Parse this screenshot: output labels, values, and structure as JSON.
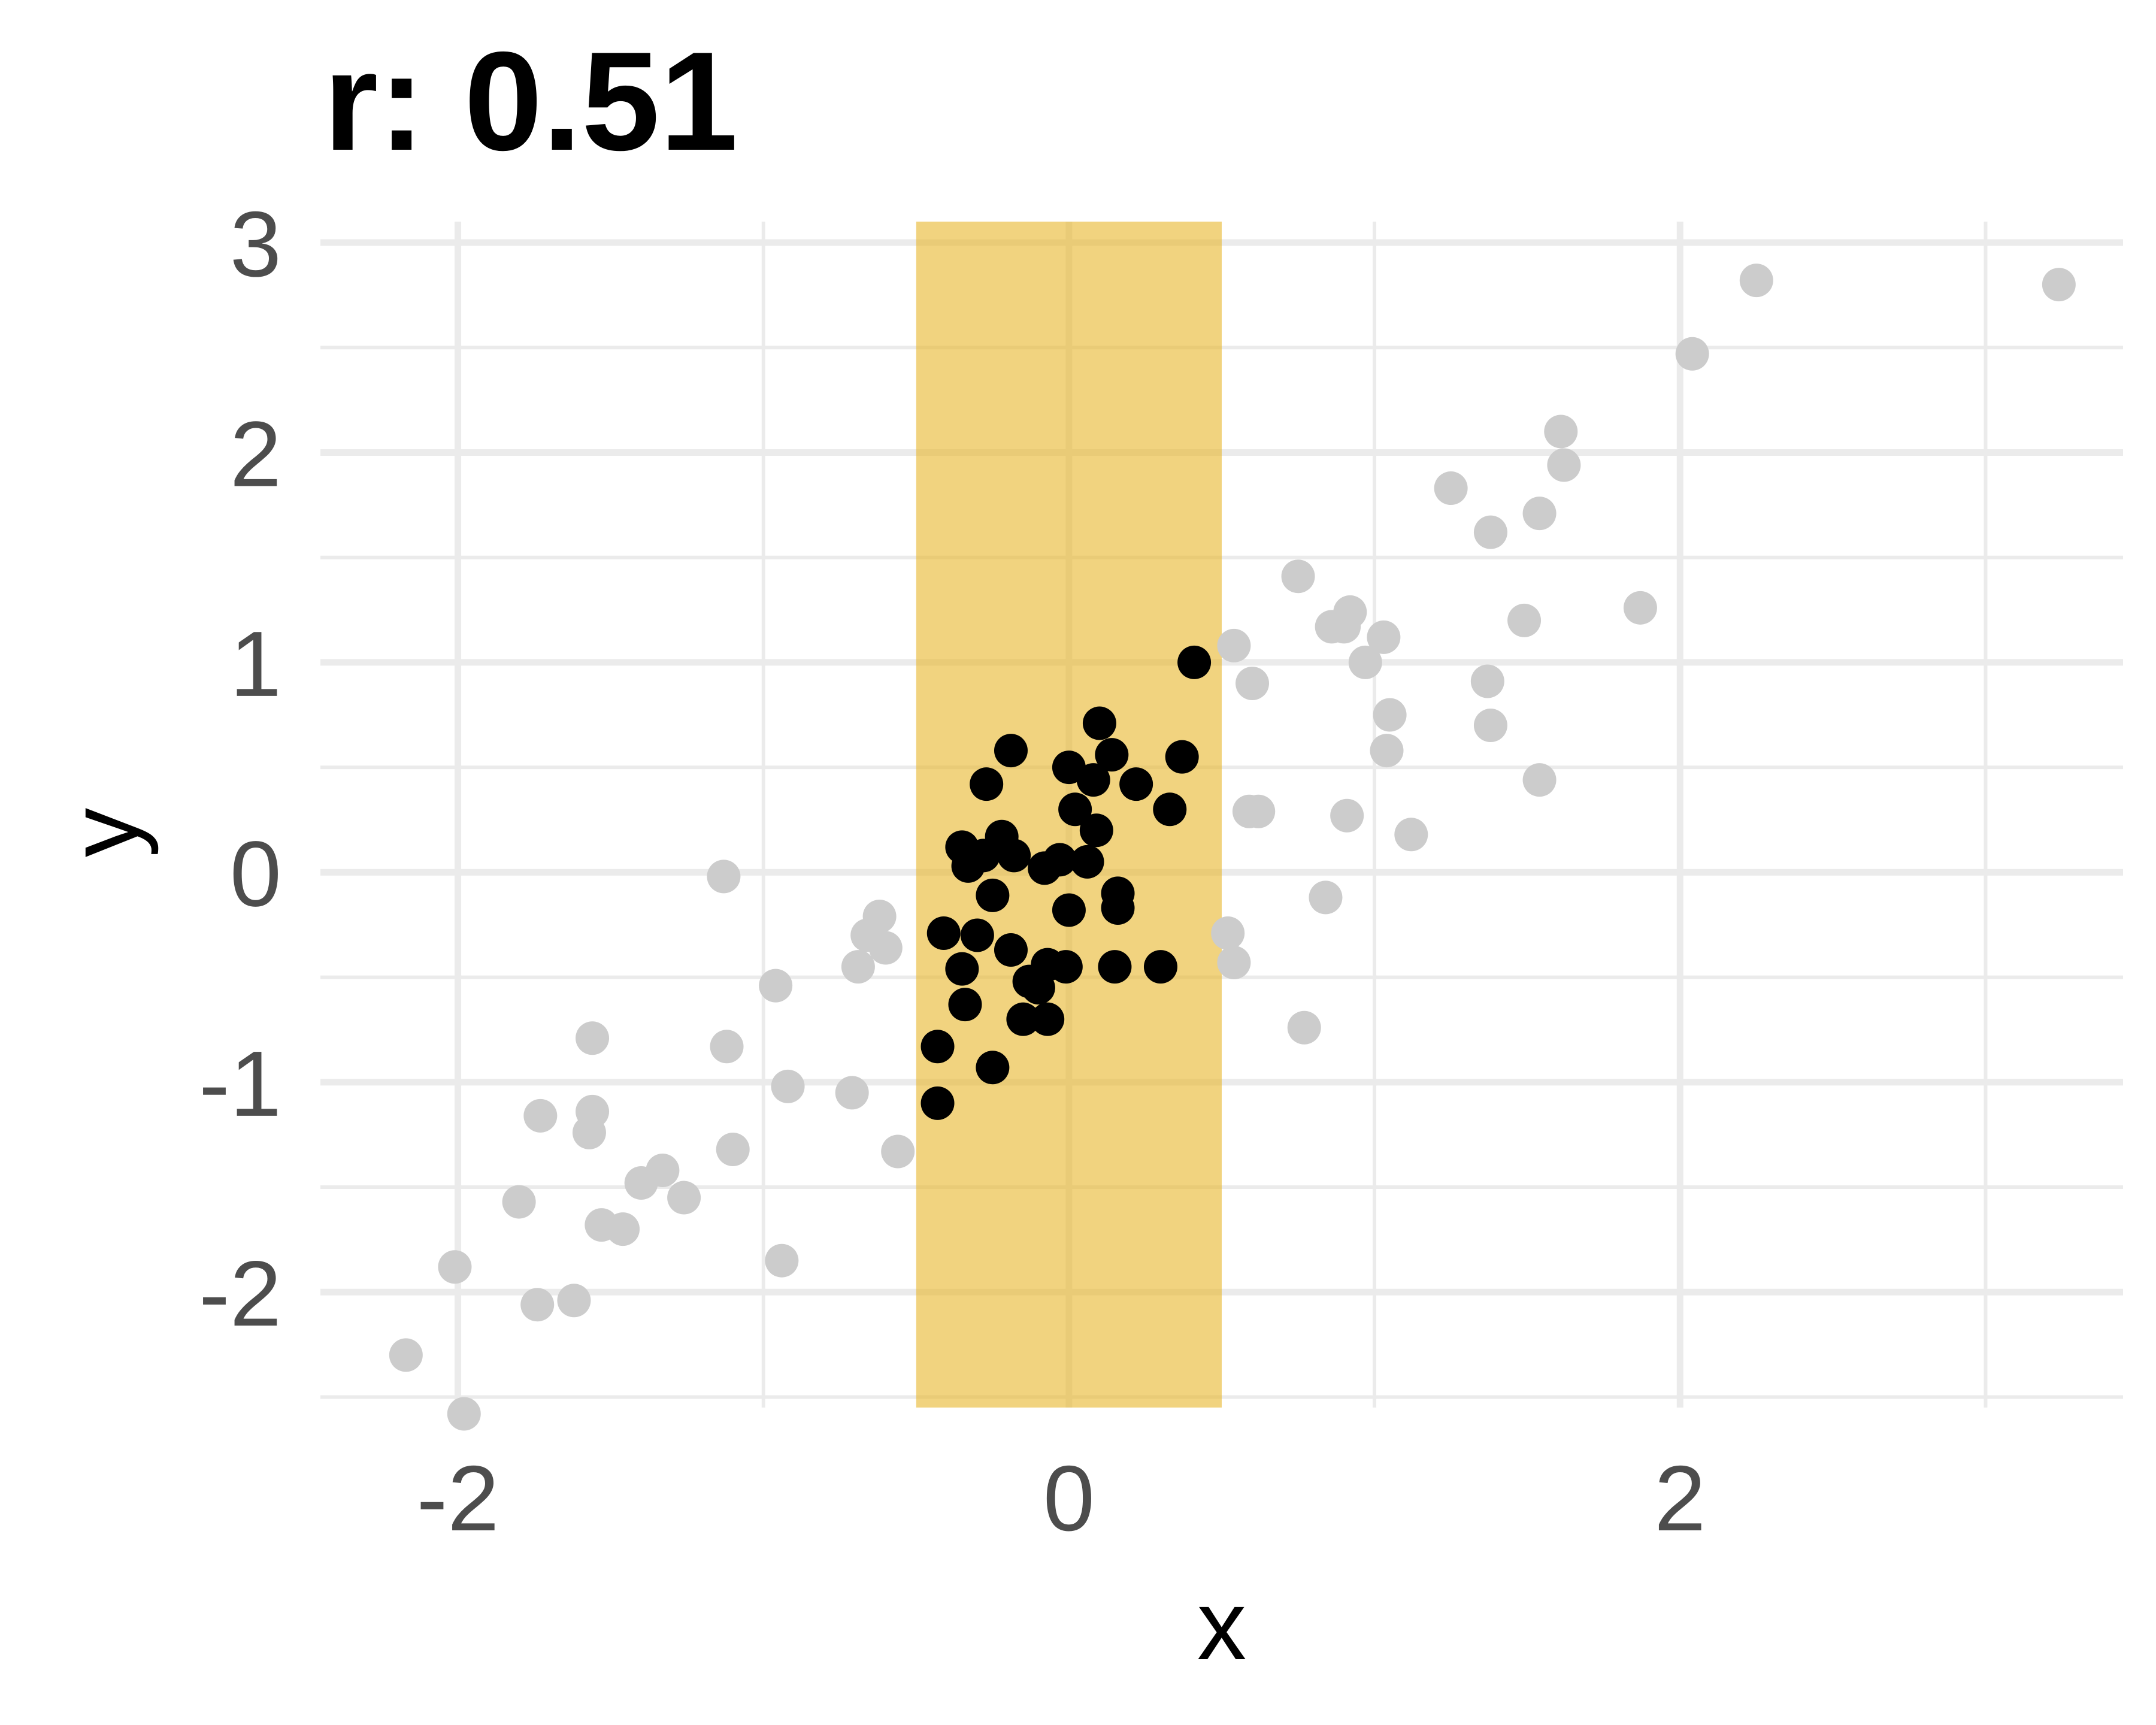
{
  "chart_data": {
    "type": "scatter",
    "title": "r: 0.51",
    "xlabel": "x",
    "ylabel": "y",
    "xlim": [
      -2.45,
      3.45
    ],
    "ylim": [
      -2.55,
      3.1
    ],
    "x_ticks": [
      -2,
      0,
      2
    ],
    "y_ticks": [
      3,
      2,
      1,
      0,
      -1,
      -2
    ],
    "x_minor_ticks": [
      -1,
      1,
      3
    ],
    "y_minor_ticks": [
      2.5,
      1.5,
      0.5,
      -0.5,
      -1.5,
      -2.5
    ],
    "grid": true,
    "highlight_band": {
      "xmin": -0.5,
      "xmax": 0.5,
      "color": "#e8b830",
      "opacity": 0.62
    },
    "colors": {
      "selected": "#000000",
      "other": "#cccccc",
      "grid": "#ebebeb"
    },
    "series": [
      {
        "role": "selected",
        "points": [
          [
            0.41,
            1.0
          ],
          [
            0.1,
            0.71
          ],
          [
            0.37,
            0.55
          ],
          [
            -0.19,
            0.58
          ],
          [
            0.14,
            0.56
          ],
          [
            0.0,
            0.5
          ],
          [
            0.08,
            0.44
          ],
          [
            0.22,
            0.42
          ],
          [
            -0.27,
            0.42
          ],
          [
            0.33,
            0.3
          ],
          [
            0.02,
            0.3
          ],
          [
            0.09,
            0.2
          ],
          [
            -0.22,
            0.17
          ],
          [
            -0.35,
            0.12
          ],
          [
            -0.18,
            0.08
          ],
          [
            -0.28,
            0.08
          ],
          [
            -0.33,
            0.03
          ],
          [
            -0.08,
            0.02
          ],
          [
            -0.03,
            0.06
          ],
          [
            0.06,
            0.05
          ],
          [
            0.16,
            -0.1
          ],
          [
            -0.25,
            -0.11
          ],
          [
            0.16,
            -0.17
          ],
          [
            0.0,
            -0.18
          ],
          [
            -0.41,
            -0.29
          ],
          [
            -0.3,
            -0.3
          ],
          [
            -0.19,
            -0.37
          ],
          [
            -0.35,
            -0.46
          ],
          [
            -0.07,
            -0.44
          ],
          [
            -0.01,
            -0.45
          ],
          [
            0.15,
            -0.45
          ],
          [
            0.3,
            -0.45
          ],
          [
            -0.13,
            -0.52
          ],
          [
            -0.1,
            -0.55
          ],
          [
            -0.34,
            -0.63
          ],
          [
            -0.15,
            -0.7
          ],
          [
            -0.07,
            -0.7
          ],
          [
            -0.43,
            -0.83
          ],
          [
            -0.25,
            -0.93
          ],
          [
            -0.43,
            -1.1
          ]
        ]
      },
      {
        "role": "other",
        "points": [
          [
            2.25,
            2.82
          ],
          [
            3.24,
            2.8
          ],
          [
            2.04,
            2.47
          ],
          [
            1.61,
            2.1
          ],
          [
            1.62,
            1.94
          ],
          [
            1.25,
            1.83
          ],
          [
            1.54,
            1.71
          ],
          [
            1.38,
            1.62
          ],
          [
            0.75,
            1.41
          ],
          [
            0.92,
            1.24
          ],
          [
            0.9,
            1.17
          ],
          [
            0.86,
            1.17
          ],
          [
            1.03,
            1.12
          ],
          [
            1.87,
            1.26
          ],
          [
            1.49,
            1.2
          ],
          [
            0.54,
            1.08
          ],
          [
            0.6,
            0.9
          ],
          [
            0.97,
            1.0
          ],
          [
            1.37,
            0.91
          ],
          [
            1.05,
            0.75
          ],
          [
            1.38,
            0.7
          ],
          [
            1.04,
            0.58
          ],
          [
            1.54,
            0.44
          ],
          [
            0.59,
            0.29
          ],
          [
            0.62,
            0.29
          ],
          [
            0.91,
            0.27
          ],
          [
            1.12,
            0.18
          ],
          [
            0.84,
            -0.12
          ],
          [
            0.52,
            -0.29
          ],
          [
            0.54,
            -0.43
          ],
          [
            0.77,
            -0.74
          ],
          [
            -1.13,
            -0.02
          ],
          [
            -0.62,
            -0.21
          ],
          [
            -0.66,
            -0.3
          ],
          [
            -0.6,
            -0.36
          ],
          [
            -0.69,
            -0.45
          ],
          [
            -0.96,
            -0.54
          ],
          [
            -1.12,
            -0.83
          ],
          [
            -1.56,
            -0.79
          ],
          [
            -0.92,
            -1.02
          ],
          [
            -0.71,
            -1.05
          ],
          [
            -1.56,
            -1.14
          ],
          [
            -1.73,
            -1.16
          ],
          [
            -1.57,
            -1.24
          ],
          [
            -1.1,
            -1.32
          ],
          [
            -0.56,
            -1.33
          ],
          [
            -1.33,
            -1.42
          ],
          [
            -1.4,
            -1.48
          ],
          [
            -1.26,
            -1.55
          ],
          [
            -1.8,
            -1.57
          ],
          [
            -1.53,
            -1.68
          ],
          [
            -1.46,
            -1.7
          ],
          [
            -0.94,
            -1.85
          ],
          [
            -2.01,
            -1.88
          ],
          [
            -1.62,
            -2.04
          ],
          [
            -1.74,
            -2.06
          ],
          [
            -2.17,
            -2.3
          ],
          [
            -1.98,
            -2.58
          ]
        ]
      }
    ]
  }
}
